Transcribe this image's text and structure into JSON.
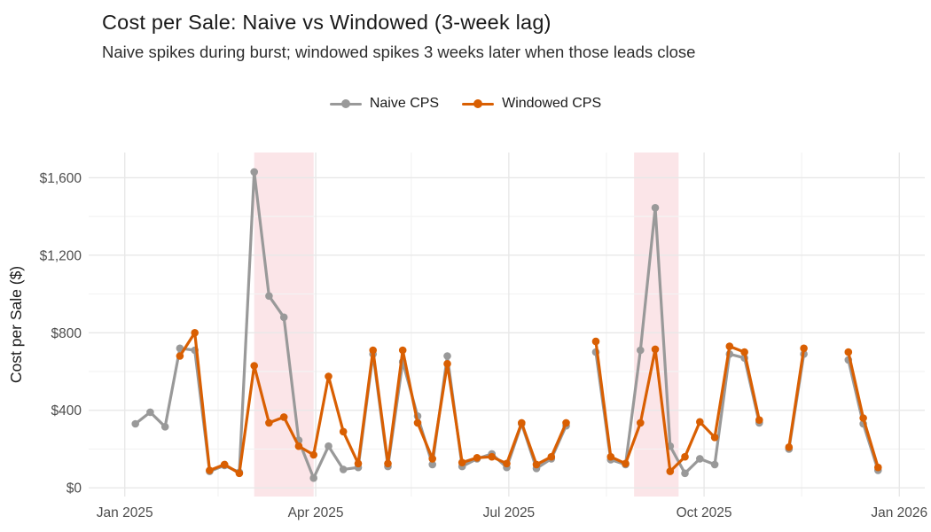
{
  "header": {
    "title": "Cost per Sale: Naive vs Windowed (3-week lag)",
    "subtitle": "Naive spikes during burst; windowed spikes 3 weeks later when those leads close"
  },
  "legend": {
    "position": "top-center",
    "items": [
      {
        "label": "Naive CPS",
        "color": "#999999"
      },
      {
        "label": "Windowed CPS",
        "color": "#D95F02"
      }
    ]
  },
  "axes": {
    "y_title": "Cost per Sale ($)",
    "x_title": ""
  },
  "chart_data": {
    "type": "line",
    "title": "Cost per Sale: Naive vs Windowed (3-week lag)",
    "subtitle": "Naive spikes during burst; windowed spikes 3 weeks later when those leads close",
    "xlabel": "",
    "ylabel": "Cost per Sale ($)",
    "grid": true,
    "legend_position": "top",
    "background": "#ffffff",
    "grid_major_color": "#e8e8e8",
    "grid_minor_color": "#f3f3f3",
    "band_color": "rgba(230,80,100,0.15)",
    "text_color": "#4d4d4d",
    "x": [
      "2025-01-06",
      "2025-01-13",
      "2025-01-20",
      "2025-01-27",
      "2025-02-03",
      "2025-02-10",
      "2025-02-17",
      "2025-02-24",
      "2025-03-03",
      "2025-03-10",
      "2025-03-17",
      "2025-03-24",
      "2025-03-31",
      "2025-04-07",
      "2025-04-14",
      "2025-04-21",
      "2025-04-28",
      "2025-05-05",
      "2025-05-12",
      "2025-05-19",
      "2025-05-26",
      "2025-06-02",
      "2025-06-09",
      "2025-06-16",
      "2025-06-23",
      "2025-06-30",
      "2025-07-07",
      "2025-07-14",
      "2025-07-21",
      "2025-07-28",
      "2025-08-04",
      "2025-08-11",
      "2025-08-18",
      "2025-08-25",
      "2025-09-01",
      "2025-09-08",
      "2025-09-15",
      "2025-09-22",
      "2025-09-29",
      "2025-10-06",
      "2025-10-13",
      "2025-10-20",
      "2025-10-27",
      "2025-11-03",
      "2025-11-10",
      "2025-11-17",
      "2025-11-24",
      "2025-12-01",
      "2025-12-08",
      "2025-12-15",
      "2025-12-22"
    ],
    "series": [
      {
        "name": "Naive CPS",
        "color": "#999999",
        "values": [
          330,
          390,
          315,
          720,
          710,
          85,
          115,
          80,
          1630,
          990,
          880,
          245,
          50,
          215,
          95,
          105,
          690,
          110,
          650,
          370,
          120,
          680,
          110,
          150,
          175,
          105,
          330,
          100,
          150,
          320,
          null,
          700,
          145,
          120,
          710,
          1445,
          215,
          75,
          150,
          120,
          690,
          670,
          335,
          null,
          200,
          690,
          null,
          null,
          660,
          330,
          90
        ]
      },
      {
        "name": "Windowed CPS",
        "color": "#D95F02",
        "values": [
          null,
          null,
          null,
          680,
          800,
          90,
          120,
          75,
          630,
          335,
          365,
          215,
          170,
          575,
          290,
          125,
          710,
          125,
          710,
          335,
          150,
          640,
          130,
          155,
          160,
          125,
          335,
          120,
          160,
          335,
          null,
          755,
          160,
          125,
          335,
          715,
          85,
          160,
          340,
          260,
          730,
          700,
          350,
          null,
          210,
          720,
          null,
          null,
          700,
          360,
          105
        ]
      }
    ],
    "bands": [
      {
        "from": "2025-03-03",
        "to": "2025-03-31"
      },
      {
        "from": "2025-08-29",
        "to": "2025-09-19"
      }
    ],
    "x_domain": [
      "2024-12-15",
      "2026-01-13"
    ],
    "x_ticks": [
      {
        "date": "2025-01-01",
        "label": "Jan 2025"
      },
      {
        "date": "2025-04-01",
        "label": "Apr 2025"
      },
      {
        "date": "2025-07-01",
        "label": "Jul 2025"
      },
      {
        "date": "2025-10-01",
        "label": "Oct 2025"
      },
      {
        "date": "2026-01-01",
        "label": "Jan 2026"
      }
    ],
    "x_minor_ticks": [
      "2025-02-14",
      "2025-05-16",
      "2025-08-16",
      "2025-11-16"
    ],
    "y_ticks": [
      {
        "value": 0,
        "label": "$0"
      },
      {
        "value": 400,
        "label": "$400"
      },
      {
        "value": 800,
        "label": "$800"
      },
      {
        "value": 1200,
        "label": "$1,200"
      },
      {
        "value": 1600,
        "label": "$1,600"
      }
    ],
    "y_minor_ticks": [
      200,
      600,
      1000,
      1400
    ],
    "ylim": [
      -45,
      1730
    ]
  }
}
